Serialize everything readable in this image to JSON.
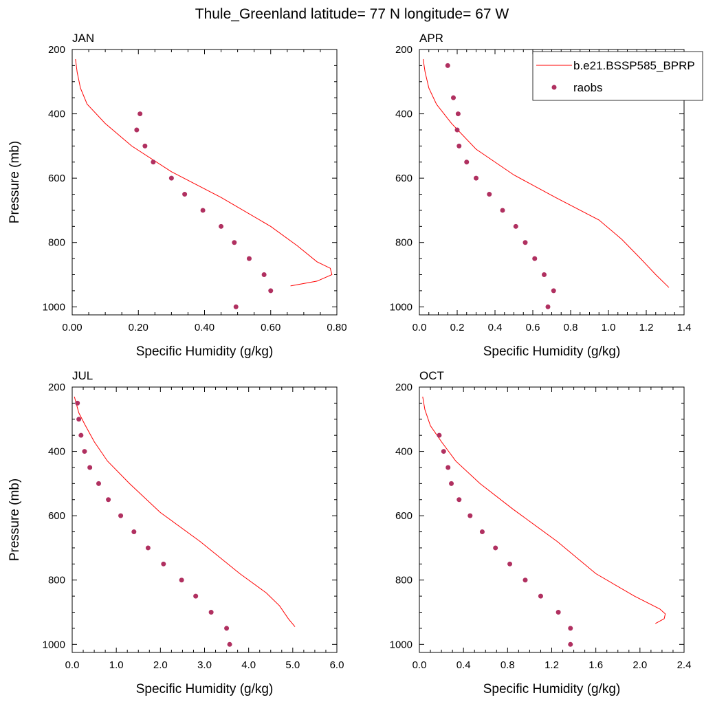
{
  "title": "Thule_Greenland  latitude= 77 N longitude= 67 W",
  "colors": {
    "model": "#ff0000",
    "obs": "#b03060",
    "axis": "#000000"
  },
  "legend": {
    "model": "b.e21.BSSP585_BPRP",
    "obs": "raobs",
    "placement": "top-right of APR panel"
  },
  "chart_data": [
    {
      "type": "line",
      "panel": "JAN",
      "xlabel": "Specific Humidity (g/kg)",
      "ylabel": "Pressure (mb)",
      "xlim": [
        0,
        0.8
      ],
      "ylim": [
        1025,
        200
      ],
      "xticks": [
        "0.00",
        "0.20",
        "0.40",
        "0.60",
        "0.80"
      ],
      "xtick_values": [
        0,
        0.2,
        0.4,
        0.6,
        0.8
      ],
      "yticks": [
        200,
        400,
        600,
        800,
        1000
      ],
      "series": [
        {
          "name": "b.e21.BSSP585_BPRP",
          "kind": "line",
          "x": [
            0.01,
            0.015,
            0.025,
            0.045,
            0.1,
            0.18,
            0.3,
            0.45,
            0.6,
            0.68,
            0.74,
            0.78,
            0.785,
            0.74,
            0.66
          ],
          "y": [
            230,
            270,
            320,
            370,
            430,
            500,
            580,
            660,
            750,
            810,
            860,
            880,
            900,
            920,
            935
          ]
        },
        {
          "name": "raobs",
          "kind": "scatter",
          "x": [
            0.205,
            0.195,
            0.22,
            0.245,
            0.3,
            0.34,
            0.395,
            0.45,
            0.49,
            0.535,
            0.58,
            0.6,
            0.495
          ],
          "y": [
            400,
            450,
            500,
            550,
            600,
            650,
            700,
            750,
            800,
            850,
            900,
            950,
            1000
          ]
        }
      ]
    },
    {
      "type": "line",
      "panel": "APR",
      "xlabel": "Specific Humidity (g/kg)",
      "ylabel": "",
      "xlim": [
        0,
        1.4
      ],
      "ylim": [
        1025,
        200
      ],
      "xticks": [
        "0.0",
        "0.2",
        "0.4",
        "0.6",
        "0.8",
        "1.0",
        "1.2",
        "1.4"
      ],
      "xtick_values": [
        0,
        0.2,
        0.4,
        0.6,
        0.8,
        1.0,
        1.2,
        1.4
      ],
      "yticks": [
        200,
        400,
        600,
        800,
        1000
      ],
      "series": [
        {
          "name": "b.e21.BSSP585_BPRP",
          "kind": "line",
          "x": [
            0.02,
            0.03,
            0.05,
            0.09,
            0.17,
            0.3,
            0.5,
            0.72,
            0.95,
            1.07,
            1.17,
            1.25,
            1.32
          ],
          "y": [
            230,
            270,
            320,
            370,
            430,
            510,
            590,
            660,
            730,
            790,
            850,
            900,
            940
          ]
        },
        {
          "name": "raobs",
          "kind": "scatter",
          "x": [
            0.15,
            0.18,
            0.205,
            0.2,
            0.21,
            0.25,
            0.3,
            0.37,
            0.44,
            0.51,
            0.56,
            0.61,
            0.66,
            0.71,
            0.68
          ],
          "y": [
            250,
            350,
            400,
            450,
            500,
            550,
            600,
            650,
            700,
            750,
            800,
            850,
            900,
            950,
            1000
          ]
        }
      ]
    },
    {
      "type": "line",
      "panel": "JUL",
      "xlabel": "Specific Humidity (g/kg)",
      "ylabel": "Pressure (mb)",
      "xlim": [
        0,
        6
      ],
      "ylim": [
        1025,
        200
      ],
      "xticks": [
        "0.0",
        "1.0",
        "2.0",
        "3.0",
        "4.0",
        "5.0",
        "6.0"
      ],
      "xtick_values": [
        0,
        1,
        2,
        3,
        4,
        5,
        6
      ],
      "yticks": [
        200,
        400,
        600,
        800,
        1000
      ],
      "series": [
        {
          "name": "b.e21.BSSP585_BPRP",
          "kind": "line",
          "x": [
            0.05,
            0.15,
            0.3,
            0.5,
            0.8,
            1.3,
            2.0,
            2.9,
            3.8,
            4.4,
            4.7,
            4.9,
            5.05
          ],
          "y": [
            230,
            280,
            320,
            370,
            430,
            500,
            590,
            680,
            780,
            840,
            880,
            920,
            945
          ]
        },
        {
          "name": "raobs",
          "kind": "scatter",
          "x": [
            0.12,
            0.15,
            0.2,
            0.28,
            0.4,
            0.6,
            0.82,
            1.1,
            1.4,
            1.72,
            2.07,
            2.48,
            2.8,
            3.15,
            3.5,
            3.57
          ],
          "y": [
            250,
            300,
            350,
            400,
            450,
            500,
            550,
            600,
            650,
            700,
            750,
            800,
            850,
            900,
            950,
            1000
          ]
        }
      ]
    },
    {
      "type": "line",
      "panel": "OCT",
      "xlabel": "Specific Humidity (g/kg)",
      "ylabel": "",
      "xlim": [
        0,
        2.4
      ],
      "ylim": [
        1025,
        200
      ],
      "xticks": [
        "0.0",
        "0.4",
        "0.8",
        "1.2",
        "1.6",
        "2.0",
        "2.4"
      ],
      "xtick_values": [
        0,
        0.4,
        0.8,
        1.2,
        1.6,
        2.0,
        2.4
      ],
      "yticks": [
        200,
        400,
        600,
        800,
        1000
      ],
      "series": [
        {
          "name": "b.e21.BSSP585_BPRP",
          "kind": "line",
          "x": [
            0.03,
            0.05,
            0.1,
            0.2,
            0.33,
            0.55,
            0.85,
            1.25,
            1.6,
            1.95,
            2.18,
            2.23,
            2.22,
            2.14
          ],
          "y": [
            230,
            270,
            320,
            370,
            430,
            500,
            580,
            680,
            780,
            850,
            890,
            905,
            920,
            935
          ]
        },
        {
          "name": "raobs",
          "kind": "scatter",
          "x": [
            0.18,
            0.22,
            0.26,
            0.29,
            0.36,
            0.46,
            0.57,
            0.69,
            0.82,
            0.96,
            1.1,
            1.26,
            1.37,
            1.37
          ],
          "y": [
            350,
            400,
            450,
            500,
            550,
            600,
            650,
            700,
            750,
            800,
            850,
            900,
            950,
            1000
          ]
        }
      ]
    }
  ]
}
